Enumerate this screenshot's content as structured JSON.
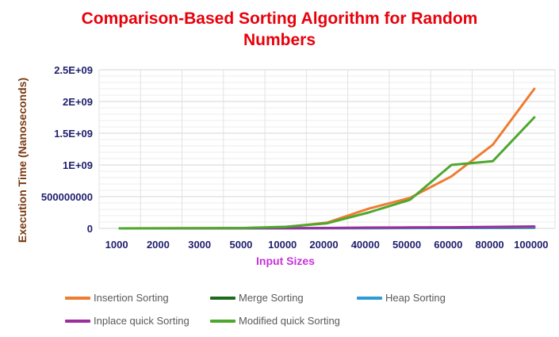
{
  "chart_data": {
    "type": "line",
    "title": "Comparison-Based Sorting Algorithm for Random Numbers",
    "xlabel": "Input Sizes",
    "ylabel": "Execution Time (Nanoseconds)",
    "categories": [
      "1000",
      "2000",
      "3000",
      "5000",
      "10000",
      "20000",
      "40000",
      "50000",
      "60000",
      "80000",
      "100000"
    ],
    "yticks": [
      "0",
      "500000000",
      "1E+09",
      "1.5E+09",
      "2E+09",
      "2.5E+09"
    ],
    "ylim": [
      0,
      2500000000
    ],
    "grid": true,
    "legend_position": "bottom",
    "series": [
      {
        "name": "Insertion Sorting",
        "color": "#ed7d31",
        "values": [
          0,
          1000000,
          2000000,
          5000000,
          20000000,
          90000000,
          310000000,
          480000000,
          820000000,
          1320000000,
          2200000000
        ]
      },
      {
        "name": "Merge Sorting",
        "color": "#1e6b1e",
        "values": [
          0,
          100000,
          200000,
          400000,
          900000,
          2000000,
          4000000,
          5000000,
          6000000,
          8000000,
          10000000
        ]
      },
      {
        "name": "Heap Sorting",
        "color": "#2e9bd6",
        "values": [
          0,
          100000,
          300000,
          500000,
          1100000,
          2500000,
          5000000,
          6500000,
          8000000,
          11000000,
          14000000
        ]
      },
      {
        "name": "Inplace quick Sorting",
        "color": "#9b2f9b",
        "values": [
          0,
          200000,
          500000,
          1000000,
          3000000,
          6000000,
          12000000,
          15000000,
          18000000,
          24000000,
          30000000
        ]
      },
      {
        "name": "Modified quick Sorting",
        "color": "#4ea72e",
        "values": [
          0,
          1000000,
          2000000,
          6000000,
          25000000,
          80000000,
          250000000,
          450000000,
          1000000000,
          1060000000,
          1750000000
        ]
      }
    ]
  }
}
